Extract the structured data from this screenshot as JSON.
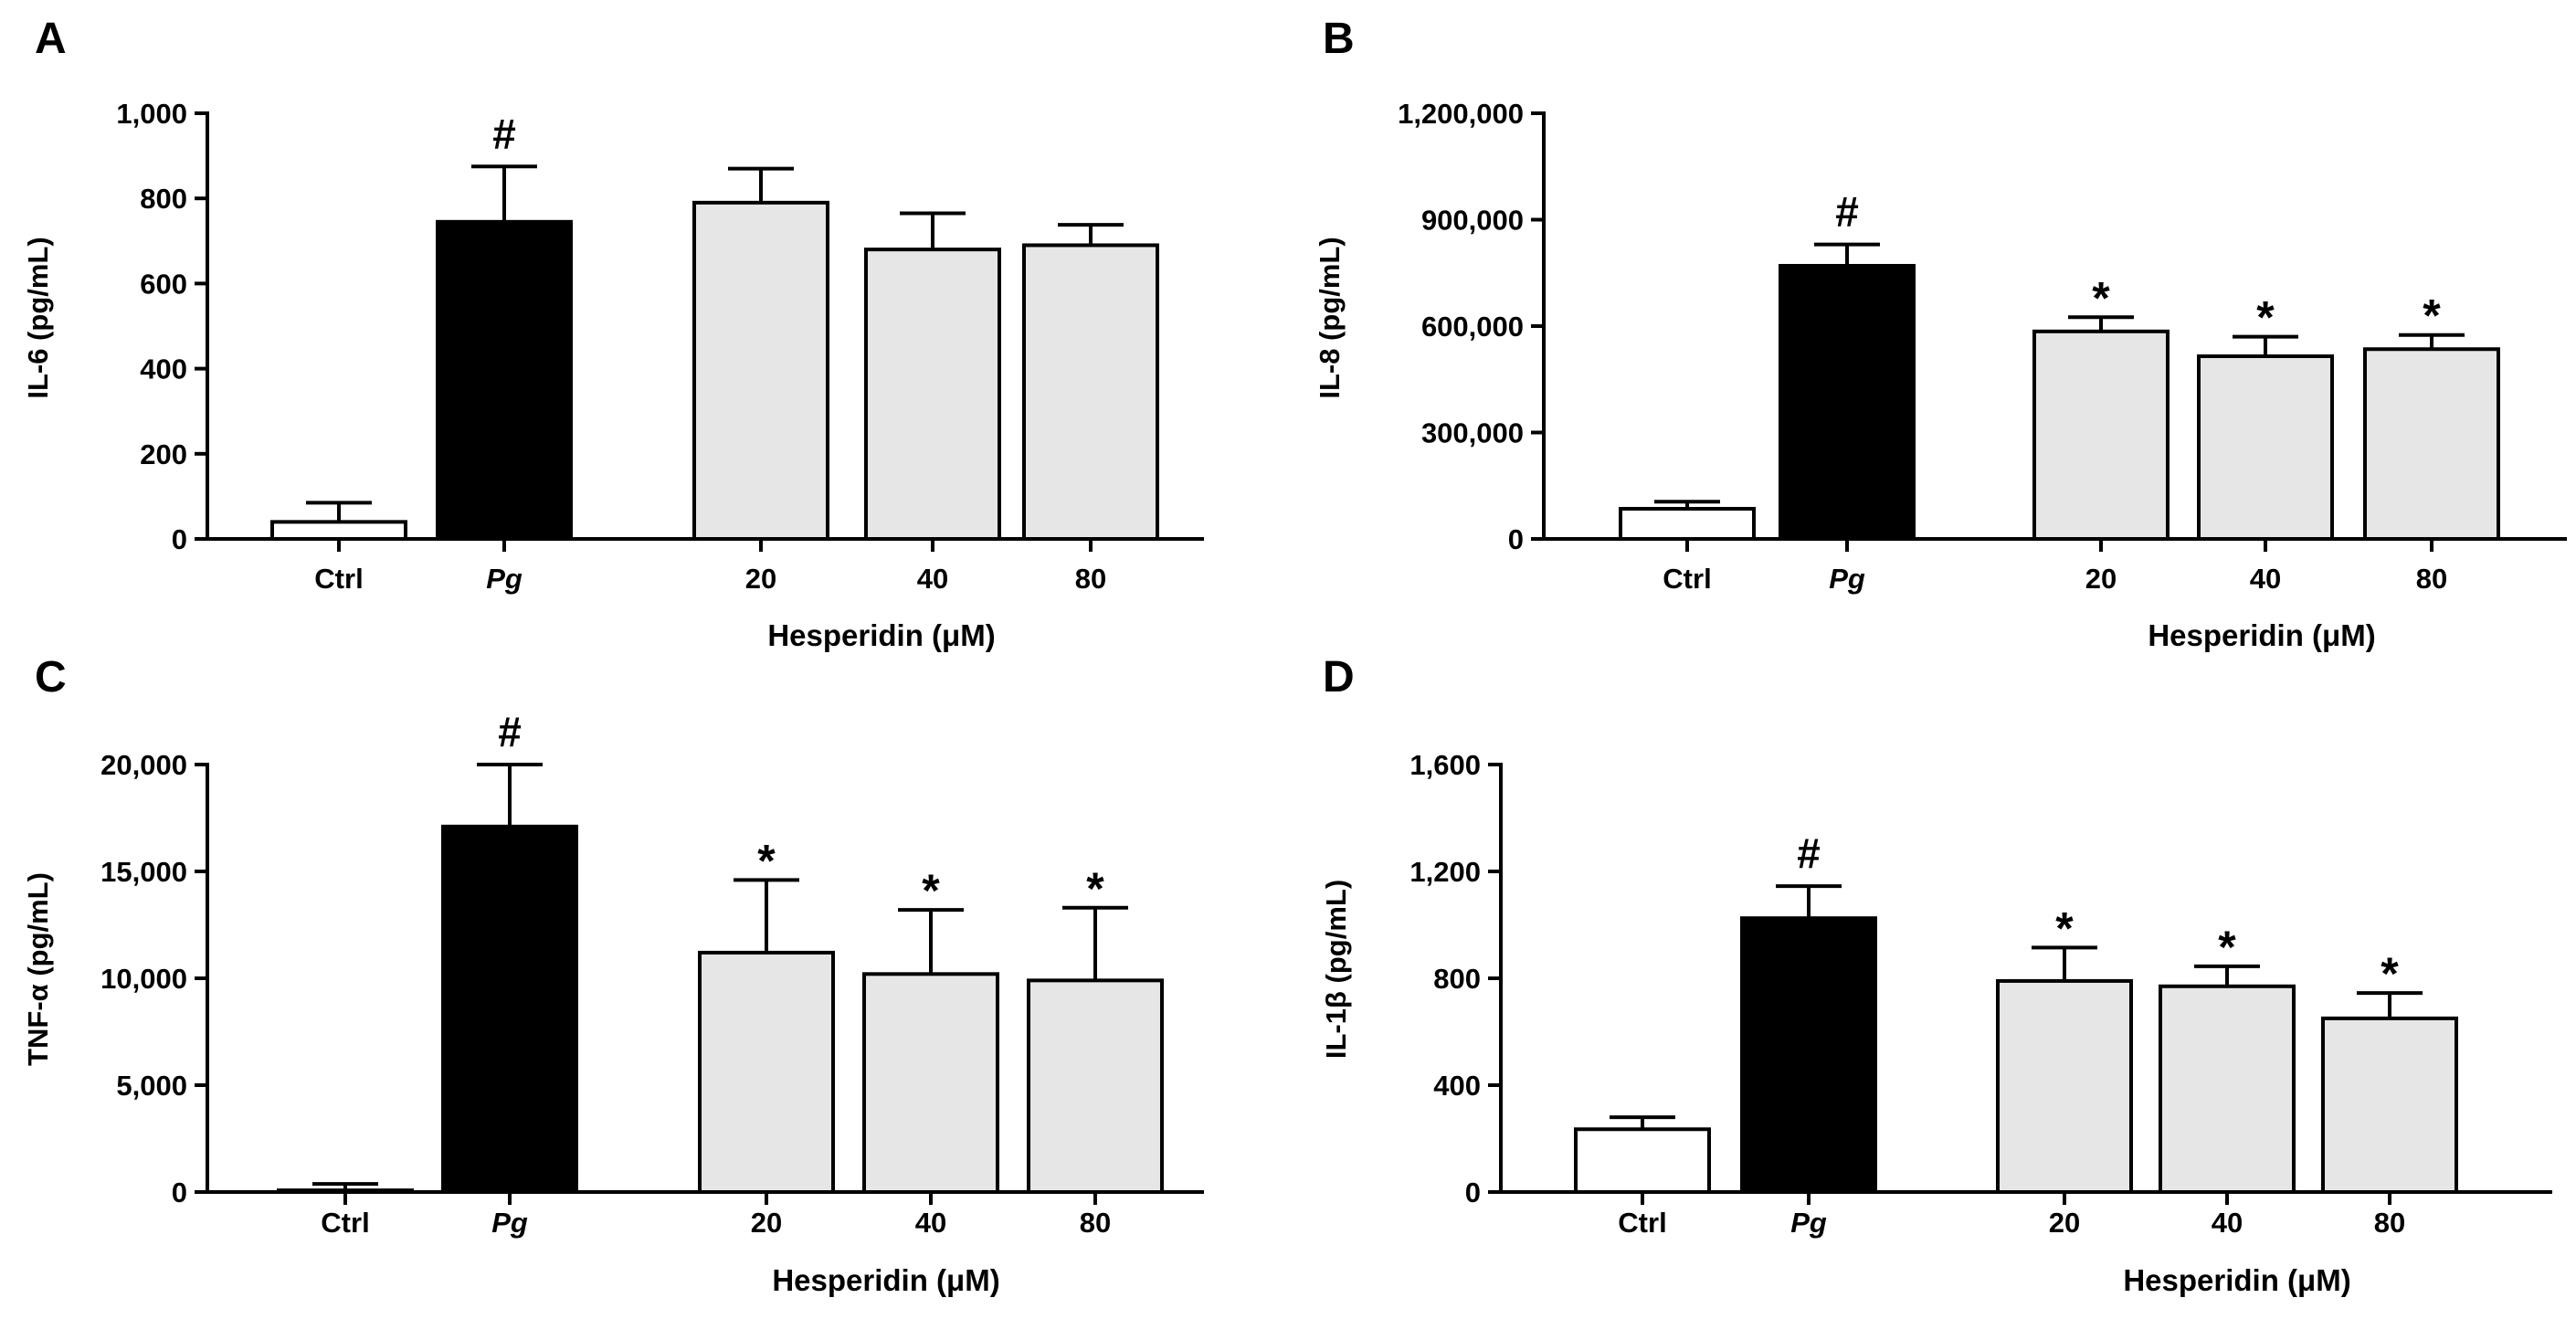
{
  "figure": {
    "axis_color": "#000000",
    "bar_colors": {
      "control": "#ffffff",
      "pg": "#000000",
      "hesperidin": "#e6e6e6"
    }
  },
  "chart_data": [
    {
      "panel": "A",
      "type": "bar",
      "ylabel": "IL-6 (pg/mL)",
      "xlabel": "Hesperidin (μM)",
      "categories": [
        "Ctrl",
        "Pg",
        "20",
        "40",
        "80"
      ],
      "values": [
        40,
        745,
        790,
        680,
        690
      ],
      "errors": [
        45,
        130,
        80,
        85,
        48
      ],
      "markers": [
        "",
        "#",
        "",
        "",
        ""
      ],
      "ylim": [
        0,
        1000
      ],
      "yticks": [
        0,
        200,
        400,
        600,
        800,
        1000
      ],
      "ytick_labels": [
        "0",
        "200",
        "400",
        "600",
        "800",
        "1,000"
      ]
    },
    {
      "panel": "B",
      "type": "bar",
      "ylabel": "IL-8 (pg/mL)",
      "xlabel": "Hesperidin (μM)",
      "categories": [
        "Ctrl",
        "Pg",
        "20",
        "40",
        "80"
      ],
      "values": [
        85000,
        770000,
        585000,
        515000,
        535000
      ],
      "errors": [
        20000,
        60000,
        40000,
        55000,
        40000
      ],
      "markers": [
        "",
        "#",
        "*",
        "*",
        "*"
      ],
      "ylim": [
        0,
        1200000
      ],
      "yticks": [
        0,
        300000,
        600000,
        900000,
        1200000
      ],
      "ytick_labels": [
        "0",
        "300,000",
        "600,000",
        "900,000",
        "1,200,000"
      ]
    },
    {
      "panel": "C",
      "type": "bar",
      "ylabel": "TNF-α (pg/mL)",
      "xlabel": "Hesperidin (μM)",
      "categories": [
        "Ctrl",
        "Pg",
        "20",
        "40",
        "80"
      ],
      "values": [
        80,
        17100,
        11200,
        10200,
        9900
      ],
      "errors": [
        300,
        2900,
        3400,
        3000,
        3400
      ],
      "markers": [
        "",
        "#",
        "*",
        "*",
        "*"
      ],
      "ylim": [
        0,
        20000
      ],
      "yticks": [
        0,
        5000,
        10000,
        15000,
        20000
      ],
      "ytick_labels": [
        "0",
        "5,000",
        "10,000",
        "15,000",
        "20,000"
      ]
    },
    {
      "panel": "D",
      "type": "bar",
      "ylabel": "IL-1β (pg/mL)",
      "xlabel": "Hesperidin (μM)",
      "categories": [
        "Ctrl",
        "Pg",
        "20",
        "40",
        "80"
      ],
      "values": [
        235,
        1025,
        790,
        770,
        650
      ],
      "errors": [
        45,
        120,
        125,
        75,
        95
      ],
      "markers": [
        "",
        "#",
        "*",
        "*",
        "*"
      ],
      "ylim": [
        0,
        1600
      ],
      "yticks": [
        0,
        400,
        800,
        1200,
        1600
      ],
      "ytick_labels": [
        "0",
        "400",
        "800",
        "1,200",
        "1,600"
      ]
    }
  ]
}
